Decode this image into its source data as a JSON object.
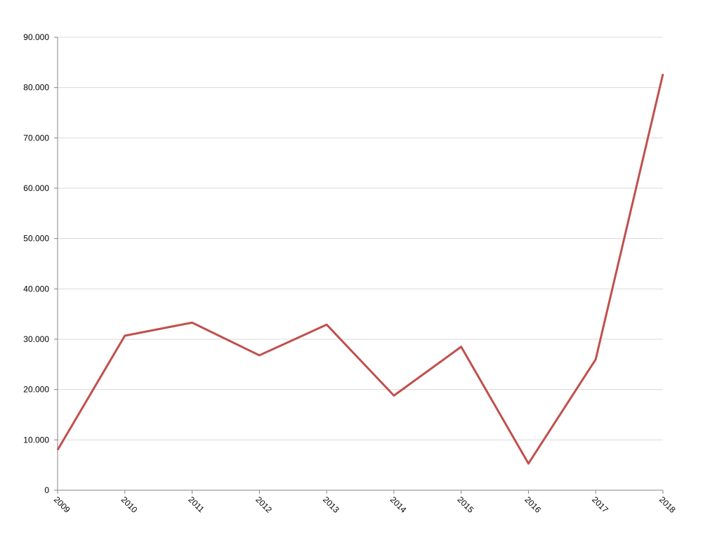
{
  "chart_data": {
    "type": "line",
    "x": [
      2009,
      2010,
      2011,
      2012,
      2013,
      2014,
      2015,
      2016,
      2017,
      2018
    ],
    "series": [
      {
        "color": "#c0504d",
        "values": [
          8000,
          30700,
          33300,
          26800,
          32900,
          18800,
          28500,
          5300,
          26000,
          82700
        ]
      }
    ],
    "xlim": [
      2009,
      2018
    ],
    "xticks": [
      2009,
      2010,
      2011,
      2012,
      2013,
      2014,
      2015,
      2016,
      2017,
      2018
    ],
    "ylim": [
      0,
      90000
    ],
    "yticks": [
      0,
      {
        "value": 10000,
        "label": "10.000"
      },
      {
        "value": 20000,
        "label": "20.000"
      },
      {
        "value": 30000,
        "label": "30.000"
      },
      {
        "value": 40000,
        "label": "40.000"
      },
      {
        "value": 50000,
        "label": "50.000"
      },
      {
        "value": 60000,
        "label": "60.000"
      },
      {
        "value": 70000,
        "label": "70.000"
      },
      {
        "value": 80000,
        "label": "80.000"
      },
      {
        "value": 90000,
        "label": "90.000"
      }
    ],
    "grid": true
  }
}
